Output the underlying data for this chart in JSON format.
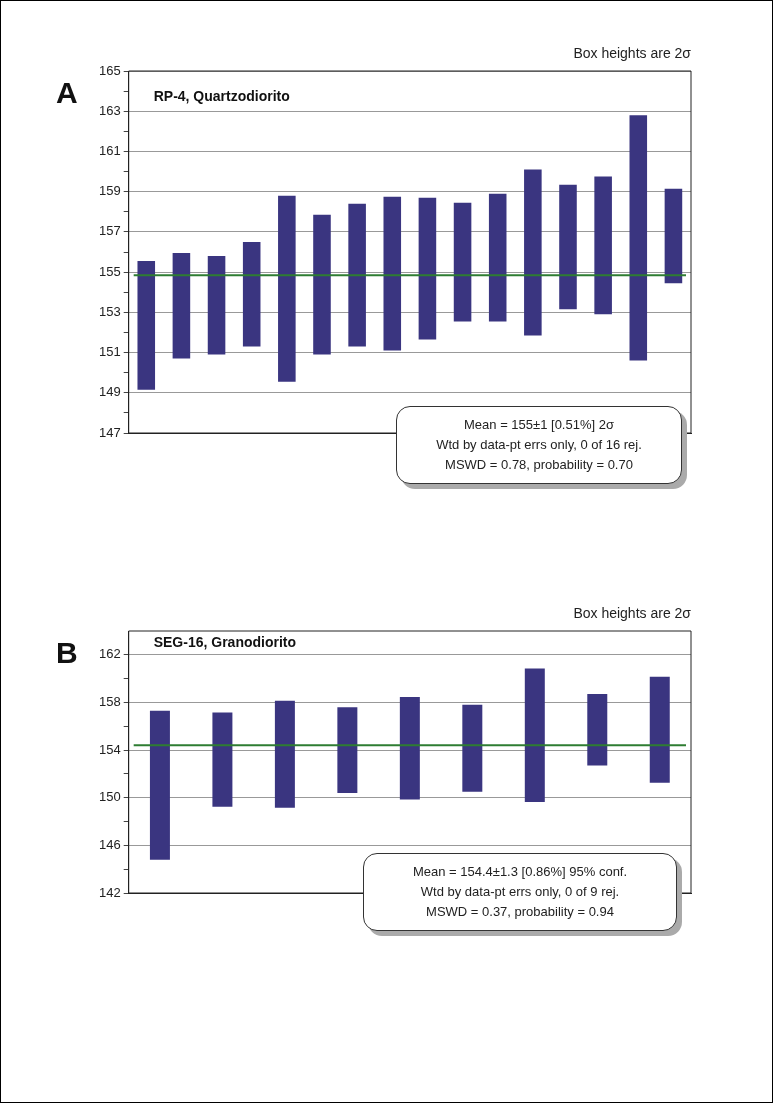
{
  "chart_data": [
    {
      "type": "bar",
      "title": "RP-4, Quartzodiorito",
      "annotations": [
        "A",
        "Box heights are 2σ",
        "Mean = 155±1  [0.51%]   2σ",
        "Wtd by data-pt errs only, 0 of 16 rej.",
        "MSWD = 0.78, probability = 0.70"
      ],
      "categories": [
        null,
        null,
        null,
        null,
        null,
        null,
        null,
        null,
        null,
        null,
        null,
        null,
        null,
        null,
        null,
        null
      ],
      "values": [
        6.4,
        5.25,
        4.9,
        5.2,
        9.25,
        6.95,
        7.1,
        7.65,
        7.05,
        5.9,
        6.35,
        8.25,
        6.2,
        6.85,
        12.2,
        4.7
      ],
      "base": [
        149.15,
        150.7,
        150.9,
        151.3,
        149.55,
        150.9,
        151.3,
        151.1,
        151.65,
        152.55,
        152.55,
        151.85,
        153.15,
        152.9,
        150.6,
        154.45
      ],
      "color": "#3a3580",
      "ylim": [
        147,
        165
      ],
      "yticks": [
        147,
        {
          "value": 148,
          "label": null
        },
        149,
        {
          "value": 150,
          "label": null
        },
        151,
        {
          "value": 152,
          "label": null
        },
        153,
        {
          "value": 154,
          "label": null
        },
        155,
        {
          "value": 156,
          "label": null
        },
        157,
        {
          "value": 158,
          "label": null
        },
        159,
        {
          "value": 160,
          "label": null
        },
        161,
        {
          "value": 162,
          "label": null
        },
        163,
        {
          "value": 164,
          "label": null
        },
        165
      ],
      "ref_lines": [
        {
          "axis": "y",
          "value": 154.85,
          "color": "#2e7d32"
        }
      ],
      "grid": "y",
      "legend": false,
      "tick_labels": "y"
    },
    {
      "type": "bar",
      "title": "SEG-16, Granodiorito",
      "annotations": [
        "B",
        "Box heights are 2σ",
        "Mean = 154.4±1.3  [0.86%]  95% conf.",
        "Wtd by data-pt errs only, 0 of 9 rej.",
        "MSWD = 0.37, probability = 0.94"
      ],
      "categories": [
        null,
        null,
        null,
        null,
        null,
        null,
        null,
        null,
        null
      ],
      "values": [
        12.5,
        7.9,
        9.0,
        7.2,
        8.6,
        7.3,
        11.2,
        6.0,
        8.9
      ],
      "base": [
        144.8,
        149.25,
        149.15,
        150.4,
        149.85,
        150.5,
        149.65,
        152.7,
        151.25
      ],
      "color": "#3a3580",
      "ylim": [
        142,
        164
      ],
      "yticks": [
        142,
        {
          "value": 144,
          "label": null
        },
        146,
        {
          "value": 148,
          "label": null
        },
        150,
        {
          "value": 152,
          "label": null
        },
        154,
        {
          "value": 156,
          "label": null
        },
        158,
        {
          "value": 160,
          "label": null
        },
        162
      ],
      "ref_lines": [
        {
          "axis": "y",
          "value": 154.4,
          "color": "#2e7d32"
        }
      ],
      "grid": "y",
      "legend": false,
      "tick_labels": "y"
    }
  ]
}
